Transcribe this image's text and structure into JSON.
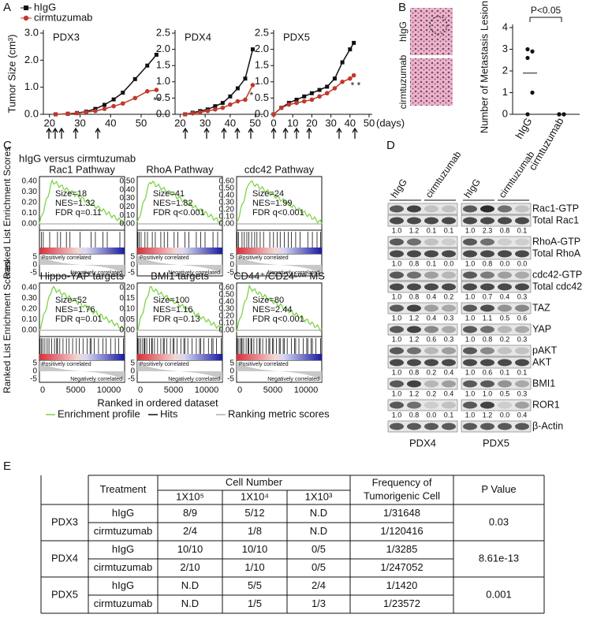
{
  "panels": [
    "A",
    "B",
    "C",
    "D",
    "E"
  ],
  "chart_data": [
    {
      "type": "line",
      "title": "PDX3",
      "ylabel": "Tumor Size (cm³)",
      "legend": true,
      "x": [
        22,
        26,
        29,
        32,
        35,
        38,
        41,
        44,
        48,
        52,
        55
      ],
      "series": [
        {
          "name": "hIgG",
          "color": "#111111",
          "marker": "square",
          "values": [
            0,
            0.02,
            0.05,
            0.1,
            0.2,
            0.35,
            0.55,
            0.8,
            1.3,
            1.8,
            2.2
          ]
        },
        {
          "name": "cirmtuzumab",
          "color": "#c0392b",
          "marker": "circle",
          "values": [
            0,
            0.02,
            0.04,
            0.08,
            0.12,
            0.2,
            0.3,
            0.4,
            0.6,
            0.85,
            0.9
          ]
        }
      ],
      "xlim": [
        18,
        58
      ],
      "xticks": [
        20,
        30,
        40,
        50
      ],
      "ylim": [
        0,
        3
      ],
      "yticks": [
        {
          "value": 0,
          "label": "0.0"
        },
        {
          "value": 1,
          "label": "1.0"
        },
        {
          "value": 2,
          "label": "2.0"
        },
        {
          "value": 3,
          "label": "3.0"
        }
      ],
      "annotation": "**"
    },
    {
      "type": "line",
      "title": "PDX4",
      "x": [
        22,
        25,
        28,
        31,
        34,
        37,
        40,
        43,
        46,
        49
      ],
      "series": [
        {
          "name": "hIgG",
          "color": "#111111",
          "marker": "square",
          "values": [
            0,
            0.05,
            0.1,
            0.15,
            0.25,
            0.35,
            0.55,
            0.8,
            1.1,
            2.0
          ]
        },
        {
          "name": "cirmtuzumab",
          "color": "#c0392b",
          "marker": "circle",
          "values": [
            0,
            0.03,
            0.06,
            0.1,
            0.15,
            0.2,
            0.3,
            0.4,
            0.45,
            0.9
          ]
        }
      ],
      "xlim": [
        18,
        52
      ],
      "xticks": [
        20,
        30,
        40,
        50
      ],
      "ylim": [
        0,
        2.5
      ],
      "yticks": [
        {
          "value": 0,
          "label": "0.0"
        },
        0.5,
        {
          "value": 1,
          "label": "1.0"
        },
        1.5,
        {
          "value": 2,
          "label": "2.0"
        },
        2.5
      ],
      "annotation": "*"
    },
    {
      "type": "line",
      "title": "PDX5",
      "xlabel": "(days)",
      "x": [
        0,
        4,
        8,
        12,
        16,
        20,
        24,
        28,
        32,
        36,
        40,
        42
      ],
      "series": [
        {
          "name": "hIgG",
          "color": "#111111",
          "marker": "square",
          "values": [
            0,
            0.2,
            0.35,
            0.45,
            0.55,
            0.65,
            0.75,
            0.85,
            1.1,
            1.6,
            2.0,
            2.2
          ]
        },
        {
          "name": "cirmtuzumab",
          "color": "#c0392b",
          "marker": "circle",
          "values": [
            0,
            0.2,
            0.3,
            0.35,
            0.4,
            0.45,
            0.55,
            0.65,
            0.8,
            1.0,
            1.1,
            1.2
          ]
        }
      ],
      "xlim": [
        0,
        50
      ],
      "xticks": [
        0,
        10,
        20,
        30,
        40,
        50
      ],
      "ylim": [
        0,
        2.5
      ],
      "yticks": [
        {
          "value": 0,
          "label": "0.0"
        },
        0.5,
        {
          "value": 1,
          "label": "1.0"
        },
        1.5,
        {
          "value": 2,
          "label": "2.0"
        },
        2.5
      ],
      "annotation": "* *"
    },
    {
      "type": "strip",
      "ylabel": "Number of Metastasis Lesion",
      "annotation": "P<0.05",
      "image_labels": [
        "hIgG",
        "cirmtuzumab"
      ],
      "categories": [
        "hIgG",
        "cirmtuzumab"
      ],
      "series": [
        {
          "name": "hIgG",
          "color": "#111111",
          "values": [
            3,
            2.9,
            2.6,
            1,
            0
          ]
        },
        {
          "name": "cirmtuzumab",
          "color": "#111111",
          "values": [
            0,
            0,
            0,
            0,
            0
          ]
        }
      ],
      "ylim": [
        0,
        4
      ],
      "yticks": [
        0,
        1,
        2,
        3,
        4
      ]
    }
  ],
  "gsea": {
    "title": "hIgG versus cirmtuzumab",
    "ylabel": "Ranked List Enrichment Scores",
    "xlabel": "Ranked in ordered dataset",
    "pos": "Positively correlated",
    "neg": "Negatively correlated",
    "rank_ticks": [
      "5",
      "0",
      "-5"
    ],
    "x_ticks": [
      "0",
      "5000",
      "10000"
    ],
    "legend": [
      "Enrichment profile",
      "Hits",
      "Ranking metric scores"
    ],
    "panels": [
      {
        "title": "Rac1 Pathway",
        "yticks": [
          "0.40",
          "0.30",
          "0.20",
          "0.10",
          "0.00"
        ],
        "stats": [
          "Size=18",
          "NES=1.32",
          "FDR q=0.11"
        ]
      },
      {
        "title": "RhoA Pathway",
        "yticks": [
          "0.50",
          "0.40",
          "0.30",
          "0.20",
          "0.10",
          "0.00"
        ],
        "stats": [
          "Size=41",
          "NES=1.82",
          "FDR q<0.001"
        ]
      },
      {
        "title": "cdc42 Pathway",
        "yticks": [
          "0.60",
          "0.50",
          "0.40",
          "0.30",
          "0.20",
          "0.10",
          "0.00"
        ],
        "stats": [
          "Size=24",
          "NES=1.99",
          "FDR q<0.001"
        ]
      },
      {
        "title": "Hippo-YAP targets",
        "yticks": [
          "0.40",
          "0.30",
          "0.20",
          "0.10",
          "0.00"
        ],
        "stats": [
          "Size=52",
          "NES=1.76",
          "FDR q=0.01"
        ]
      },
      {
        "title": "BMI1 targets",
        "yticks": [
          "0.20",
          "0.15",
          "0.10",
          "0.05",
          "0.00"
        ],
        "stats": [
          "Size=100",
          "NES=1.16",
          "FDR q=0.13"
        ]
      },
      {
        "title": "CD44⁺/CD24ᴸᵒʷ MS",
        "yticks": [
          "0.60",
          "0.50",
          "0.40",
          "0.30",
          "0.20",
          "0.10",
          "0.00"
        ],
        "stats": [
          "Size=80",
          "NES=2.44",
          "FDR q<0.001"
        ]
      }
    ]
  },
  "western": {
    "lane_groups": [
      "hIgG",
      "cirmtuzumab"
    ],
    "models": [
      "PDX4",
      "PDX5"
    ],
    "blocks": [
      {
        "proteins": [
          "Rac1-GTP",
          "Total Rac1"
        ],
        "quant": [
          [
            "1.0",
            "1.2",
            "0.1",
            "0.1"
          ],
          [
            "1.0",
            "2.3",
            "0.8",
            "0.1"
          ]
        ]
      },
      {
        "proteins": [
          "RhoA-GTP",
          "Total RhoA"
        ],
        "quant": [
          [
            "1.0",
            "0.8",
            "0.1",
            "0.0"
          ],
          [
            "1.0",
            "0.8",
            "0.0",
            "0.0"
          ]
        ]
      },
      {
        "proteins": [
          "cdc42-GTP",
          "Total cdc42"
        ],
        "quant": [
          [
            "1.0",
            "0.8",
            "0.4",
            "0.2"
          ],
          [
            "1.0",
            "0.7",
            "0.4",
            "0.3"
          ]
        ]
      },
      {
        "proteins": [
          "TAZ"
        ],
        "quant": [
          [
            "1.0",
            "1.2",
            "0.4",
            "0.3"
          ],
          [
            "1.0",
            "1.1",
            "0.5",
            "0.6"
          ]
        ]
      },
      {
        "proteins": [
          "YAP"
        ],
        "quant": [
          [
            "1.0",
            "1.2",
            "0.6",
            "0.3"
          ],
          [
            "1.0",
            "0.8",
            "0.2",
            "0.3"
          ]
        ]
      },
      {
        "proteins": [
          "pAKT",
          "AKT"
        ],
        "quant": [
          [
            "1.0",
            "0.8",
            "0.2",
            "0.4"
          ],
          [
            "1.0",
            "0.6",
            "0.1",
            "0.1"
          ]
        ]
      },
      {
        "proteins": [
          "BMI1"
        ],
        "quant": [
          [
            "1.0",
            "1.2",
            "0.2",
            "0.4"
          ],
          [
            "1.0",
            "1.0",
            "0.5",
            "0.3"
          ]
        ]
      },
      {
        "proteins": [
          "ROR1"
        ],
        "quant": [
          [
            "1.0",
            "0.8",
            "0.0",
            "0.1"
          ],
          [
            "1.0",
            "1.2",
            "0.0",
            "0.4"
          ]
        ]
      },
      {
        "proteins": [
          "β-Actin"
        ]
      }
    ]
  },
  "table": {
    "header": {
      "treatment": "Treatment",
      "cell_number": "Cell Number",
      "doses": [
        "1X10⁵",
        "1X10⁴",
        "1X10³"
      ],
      "frequency": [
        "Frequency of",
        "Tumorigenic Cell"
      ],
      "p_value": "P Value"
    },
    "groups": [
      {
        "model": "PDX3",
        "p_value": "0.03",
        "rows": [
          [
            "hIgG",
            "8/9",
            "5/12",
            "N.D",
            "1/31648"
          ],
          [
            "cirmtuzumab",
            "2/4",
            "1/8",
            "N.D",
            "1/120416"
          ]
        ]
      },
      {
        "model": "PDX4",
        "p_value": "8.61e-13",
        "rows": [
          [
            "hIgG",
            "10/10",
            "10/10",
            "0/5",
            "1/3285"
          ],
          [
            "cirmtuzumab",
            "2/10",
            "1/10",
            "0/5",
            "1/247052"
          ]
        ]
      },
      {
        "model": "PDX5",
        "p_value": "0.001",
        "rows": [
          [
            "hIgG",
            "N.D",
            "5/5",
            "2/4",
            "1/1420"
          ],
          [
            "cirmtuzumab",
            "N.D",
            "1/5",
            "1/3",
            "1/23572"
          ]
        ]
      }
    ]
  }
}
